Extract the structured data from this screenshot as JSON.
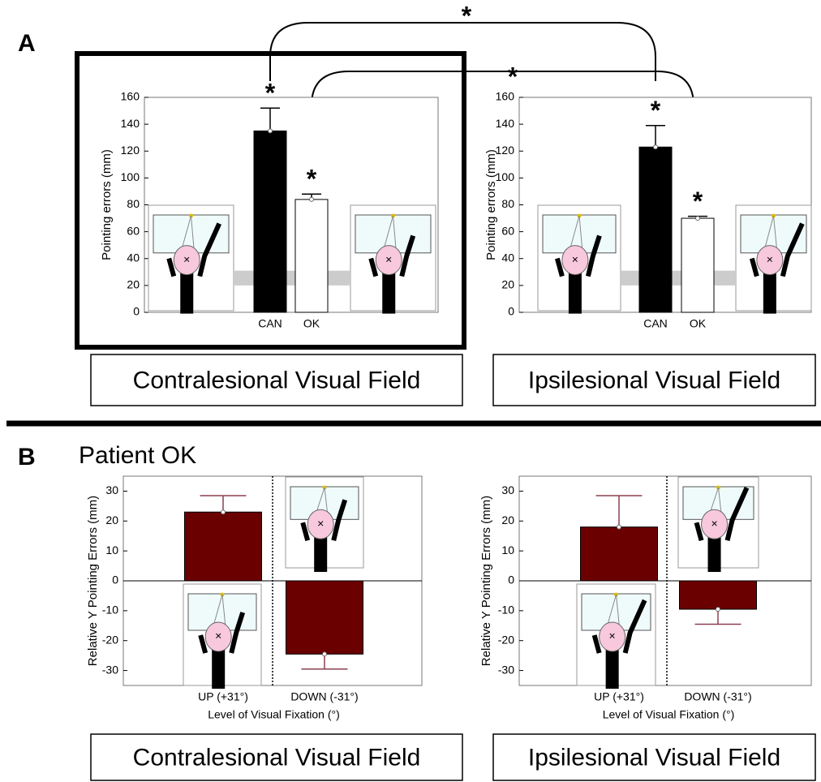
{
  "panel_labels": {
    "a": "A",
    "b": "B"
  },
  "panel_b_title": "Patient OK",
  "comparisons": [
    {
      "label": "*"
    },
    {
      "label": "*"
    }
  ],
  "chart_data": [
    {
      "type": "bar",
      "ylabel": "Pointing errors (mm)",
      "categories": [
        "CAN",
        "OK"
      ],
      "values": [
        135,
        84
      ],
      "errors": [
        17,
        4
      ],
      "colors": [
        "#000000",
        "#ffffff"
      ],
      "bar_annotations": [
        "*",
        "*"
      ],
      "reference_band": [
        20,
        31
      ],
      "ylim": [
        0,
        160
      ],
      "yticks": [
        0,
        20,
        40,
        60,
        80,
        100,
        120,
        140,
        160
      ],
      "field_label": "Contralesional Visual Field"
    },
    {
      "type": "bar",
      "ylabel": "Pointing errors (mm)",
      "categories": [
        "CAN",
        "OK"
      ],
      "values": [
        123,
        70
      ],
      "errors": [
        16,
        1.5
      ],
      "colors": [
        "#000000",
        "#ffffff"
      ],
      "bar_annotations": [
        "*",
        "*"
      ],
      "reference_band": [
        20,
        31
      ],
      "ylim": [
        0,
        160
      ],
      "yticks": [
        0,
        20,
        40,
        60,
        80,
        100,
        120,
        140,
        160
      ],
      "field_label": "Ipsilesional Visual Field"
    },
    {
      "type": "bar",
      "ylabel": "Relative Y Pointing Errors (mm)",
      "xlabel": "Level of Visual Fixation (°)",
      "categories": [
        "UP (+31°)",
        "DOWN (-31°)"
      ],
      "values": [
        23,
        -24.5
      ],
      "errors": [
        5.5,
        5
      ],
      "colors": [
        "#6b0000",
        "#6b0000"
      ],
      "ylim": [
        -35,
        35
      ],
      "yticks": [
        -30,
        -20,
        -10,
        0,
        10,
        20,
        30
      ],
      "field_label": "Contralesional Visual Field"
    },
    {
      "type": "bar",
      "ylabel": "Relative Y Pointing Errors (mm)",
      "xlabel": "Level of Visual Fixation (°)",
      "categories": [
        "UP (+31°)",
        "DOWN (-31°)"
      ],
      "values": [
        18,
        -9.5
      ],
      "errors": [
        10.5,
        5
      ],
      "colors": [
        "#6b0000",
        "#6b0000"
      ],
      "ylim": [
        -35,
        35
      ],
      "yticks": [
        -30,
        -20,
        -10,
        0,
        10,
        20,
        30
      ],
      "field_label": "Ipsilesional Visual Field"
    }
  ]
}
